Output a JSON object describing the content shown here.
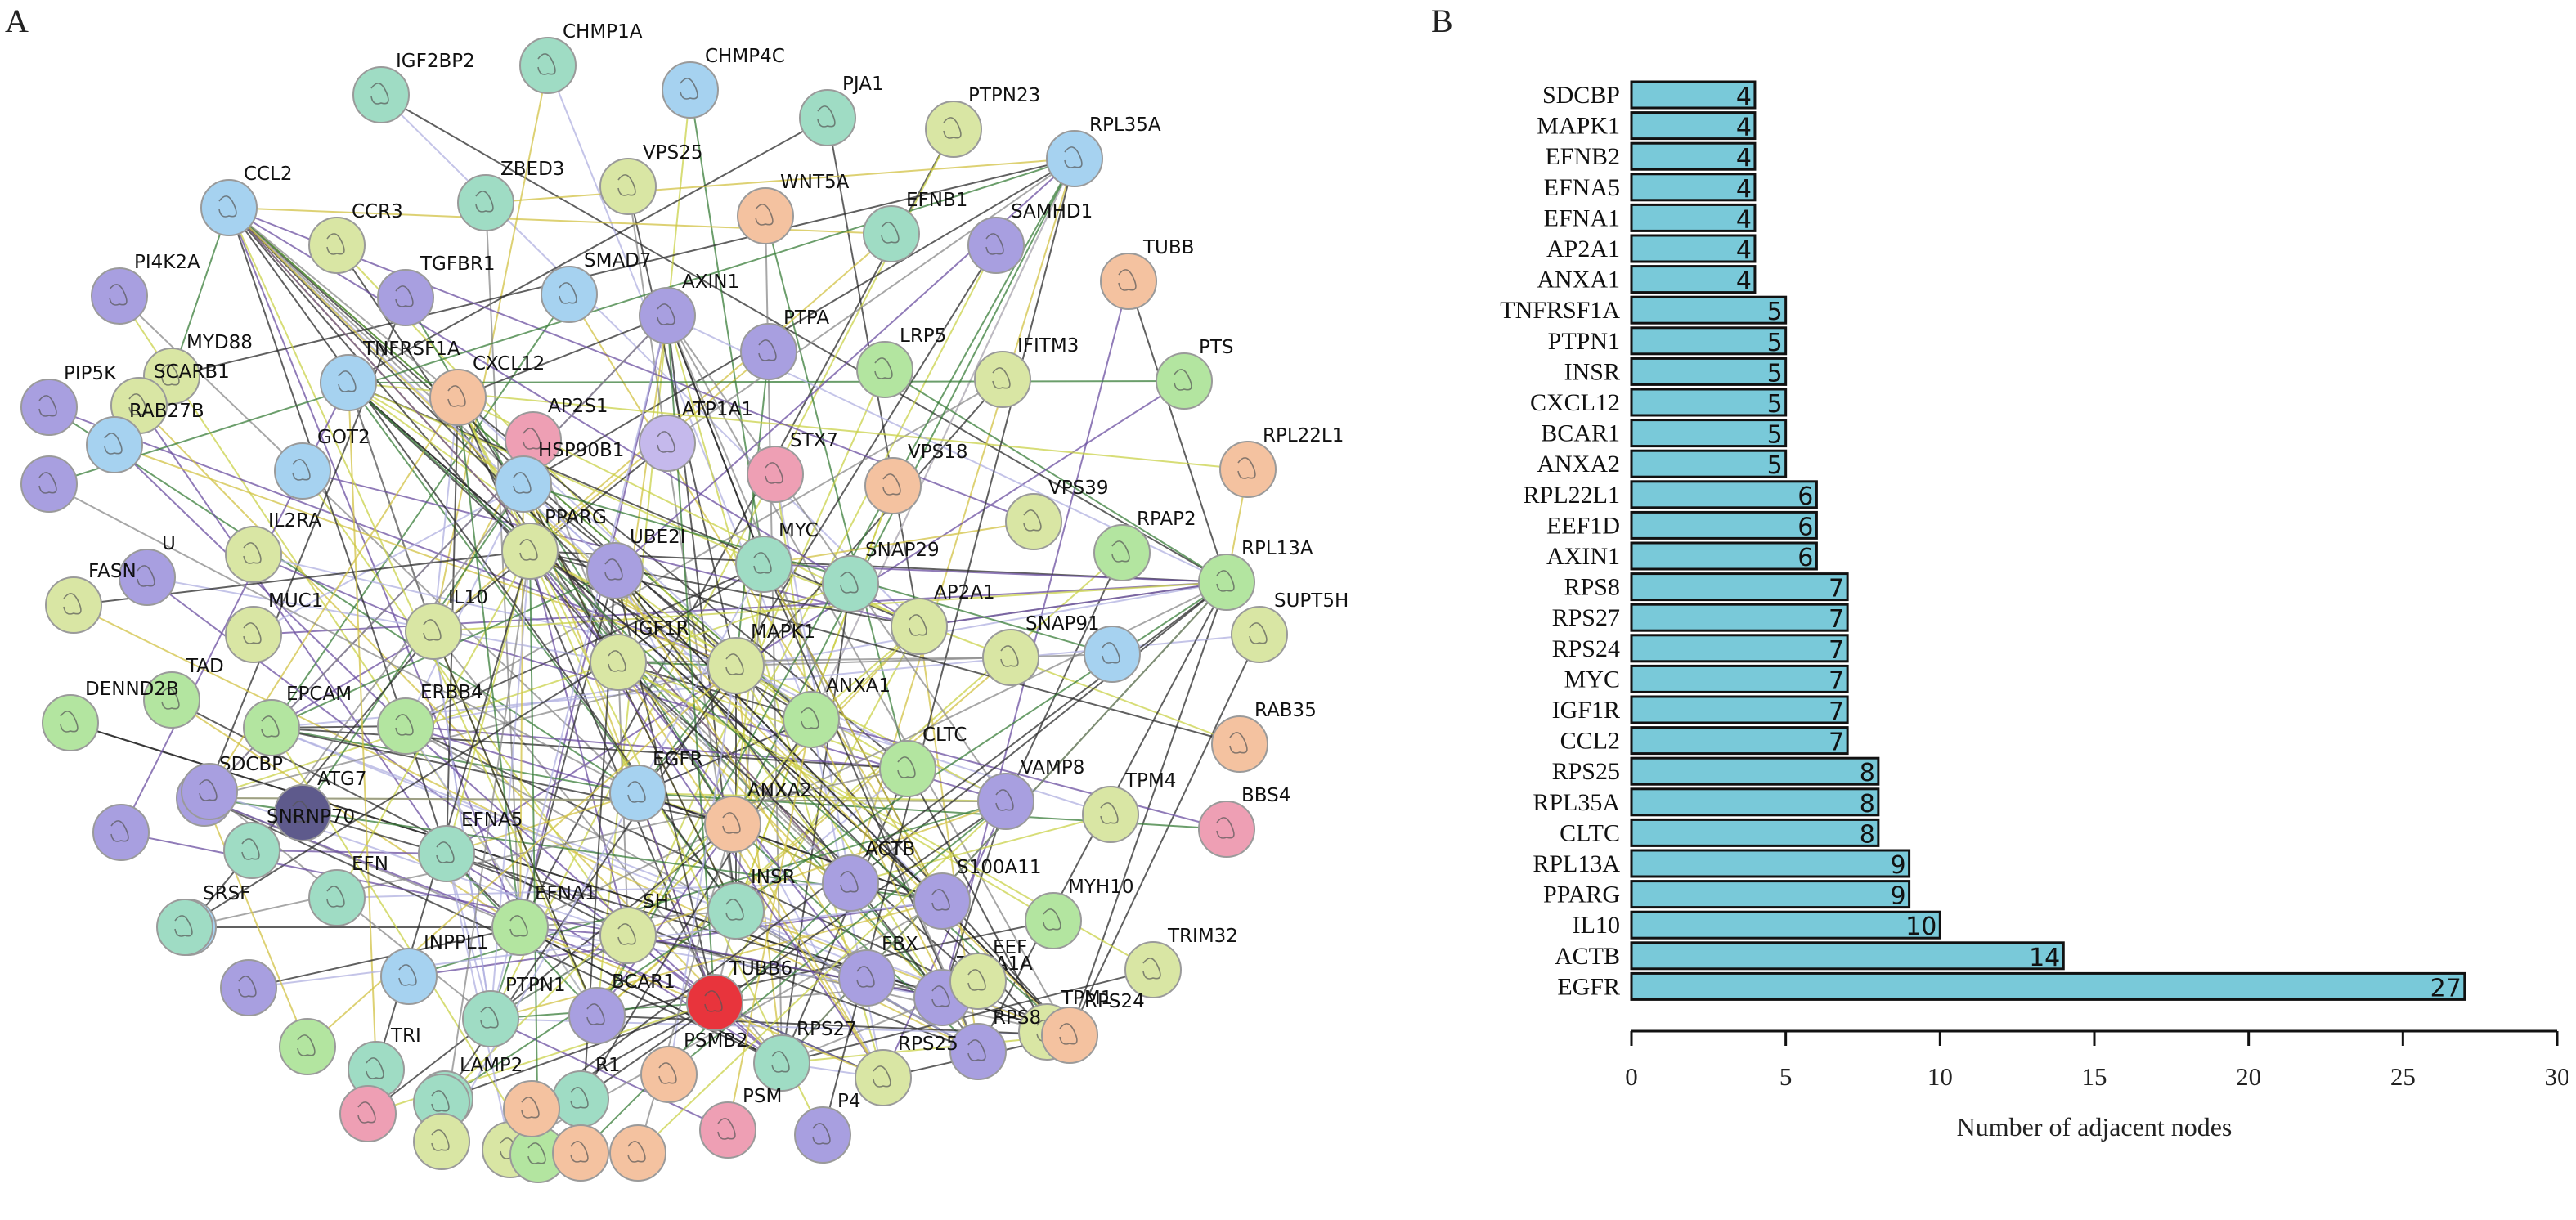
{
  "panels": {
    "a_letter": "A",
    "b_letter": "B"
  },
  "network": {
    "nodes": [
      {
        "id": "IGF2BP2",
        "label": "IGF2BP2",
        "color": "#9fdcc4"
      },
      {
        "id": "CHMP1A",
        "label": "CHMP1A",
        "color": "#9fdcc4"
      },
      {
        "id": "CHMP4C",
        "label": "CHMP4C",
        "color": "#a6d2f0"
      },
      {
        "id": "PJA1",
        "label": "PJA1",
        "color": "#9fdcc4"
      },
      {
        "id": "PTPN23",
        "label": "PTPN23",
        "color": "#d9e6a4"
      },
      {
        "id": "RPL35A",
        "label": "RPL35A",
        "color": "#a6d2f0"
      },
      {
        "id": "ZBED3",
        "label": "ZBED3",
        "color": "#9fdcc4"
      },
      {
        "id": "VPS25",
        "label": "VPS25",
        "color": "#d9e6a4"
      },
      {
        "id": "WNT5A",
        "label": "WNT5A",
        "color": "#f4c2a0"
      },
      {
        "id": "EFNB1",
        "label": "EFNB1",
        "color": "#9fdcc4"
      },
      {
        "id": "SAMHD1",
        "label": "SAMHD1",
        "color": "#a89fe0"
      },
      {
        "id": "TUBB",
        "label": "TUBB",
        "color": "#f4c2a0"
      },
      {
        "id": "CCL2",
        "label": "CCL2",
        "color": "#a6d2f0"
      },
      {
        "id": "CCR3",
        "label": "CCR3",
        "color": "#d9e6a4"
      },
      {
        "id": "TGFBR1",
        "label": "TGFBR1",
        "color": "#a89fe0"
      },
      {
        "id": "SMAD7",
        "label": "SMAD7",
        "color": "#a6d2f0"
      },
      {
        "id": "AXIN1",
        "label": "AXIN1",
        "color": "#a89fe0"
      },
      {
        "id": "PI4K2A",
        "label": "PI4K2A",
        "color": "#a89fe0"
      },
      {
        "id": "PTPA",
        "label": "PTPA",
        "color": "#a89fe0"
      },
      {
        "id": "LRP5",
        "label": "LRP5",
        "color": "#b3e5a0"
      },
      {
        "id": "IFITM3",
        "label": "IFITM3",
        "color": "#d9e6a4"
      },
      {
        "id": "PTS",
        "label": "PTS",
        "color": "#b3e5a0"
      },
      {
        "id": "MYD88",
        "label": "MYD88",
        "color": "#d9e6a4"
      },
      {
        "id": "TNFRSF1A",
        "label": "TNFRSF1A",
        "color": "#a6d2f0"
      },
      {
        "id": "CXCL12",
        "label": "CXCL12",
        "color": "#f4c2a0"
      },
      {
        "id": "PIP5K",
        "label": "PIP5K",
        "color": "#a89fe0"
      },
      {
        "id": "SCARB1",
        "label": "SCARB1",
        "color": "#d9e6a4"
      },
      {
        "id": "AP2S1",
        "label": "AP2S1",
        "color": "#ee9fb4"
      },
      {
        "id": "ATP1A1",
        "label": "ATP1A1",
        "color": "#c5b9ec"
      },
      {
        "id": "STX7",
        "label": "STX7",
        "color": "#ee9fb4"
      },
      {
        "id": "VPS18",
        "label": "VPS18",
        "color": "#f4c2a0"
      },
      {
        "id": "RPL22L1",
        "label": "RPL22L1",
        "color": "#f4c2a0"
      },
      {
        "id": "RAB27B",
        "label": "RAB27B",
        "color": "#a6d2f0"
      },
      {
        "id": "GOT2",
        "label": "GOT2",
        "color": "#a6d2f0"
      },
      {
        "id": "HSP90B1",
        "label": "HSP90B1",
        "color": "#a6d2f0"
      },
      {
        "id": "PPARG",
        "label": "PPARG",
        "color": "#d9e6a4"
      },
      {
        "id": "UBE2I",
        "label": "UBE2I",
        "color": "#a89fe0"
      },
      {
        "id": "VPS39",
        "label": "VPS39",
        "color": "#d9e6a4"
      },
      {
        "id": "RPAP2",
        "label": "RPAP2",
        "color": "#b3e5a0"
      },
      {
        "id": "RPL13A",
        "label": "RPL13A",
        "color": "#b3e5a0"
      },
      {
        "id": "IL2RA",
        "label": "IL2RA",
        "color": "#d9e6a4"
      },
      {
        "id": "MYC",
        "label": "MYC",
        "color": "#9fdcc4"
      },
      {
        "id": "SNAP29",
        "label": "SNAP29",
        "color": "#9fdcc4"
      },
      {
        "id": "AP2A1",
        "label": "AP2A1",
        "color": "#d9e6a4"
      },
      {
        "id": "SNAP91",
        "label": "SNAP91",
        "color": "#d9e6a4"
      },
      {
        "id": "SUPT5H",
        "label": "SUPT5H",
        "color": "#d9e6a4"
      },
      {
        "id": "U",
        "label": "U",
        "color": "#a89fe0"
      },
      {
        "id": "MUC1",
        "label": "MUC1",
        "color": "#d9e6a4"
      },
      {
        "id": "IL10",
        "label": "IL10",
        "color": "#d9e6a4"
      },
      {
        "id": "FASN",
        "label": "FASN",
        "color": "#d9e6a4"
      },
      {
        "id": "IGF1R",
        "label": "IGF1R",
        "color": "#d9e6a4"
      },
      {
        "id": "MAPK1",
        "label": "MAPK1",
        "color": "#d9e6a4"
      },
      {
        "id": "ANXA1",
        "label": "ANXA1",
        "color": "#b3e5a0"
      },
      {
        "id": "RAB35",
        "label": "RAB35",
        "color": "#f4c2a0"
      },
      {
        "id": "TAD",
        "label": "TAD",
        "color": "#b3e5a0"
      },
      {
        "id": "EPCAM",
        "label": "EPCAM",
        "color": "#b3e5a0"
      },
      {
        "id": "ERBB4",
        "label": "ERBB4",
        "color": "#b3e5a0"
      },
      {
        "id": "CLTC",
        "label": "CLTC",
        "color": "#b3e5a0"
      },
      {
        "id": "DENND2B",
        "label": "DENND2B",
        "color": "#b3e5a0"
      },
      {
        "id": "SDCBP",
        "label": "SDCBP",
        "color": "#a89fe0"
      },
      {
        "id": "EGFR",
        "label": "EGFR",
        "color": "#a6d2f0"
      },
      {
        "id": "VAMP8",
        "label": "VAMP8",
        "color": "#a89fe0"
      },
      {
        "id": "TPM4",
        "label": "TPM4",
        "color": "#d9e6a4"
      },
      {
        "id": "BBS4",
        "label": "BBS4",
        "color": "#ee9fb4"
      },
      {
        "id": "ATG7",
        "label": "ATG7",
        "color": "#5e5a8c"
      },
      {
        "id": "ANXA2",
        "label": "ANXA2",
        "color": "#f4c2a0"
      },
      {
        "id": "EFNA5",
        "label": "EFNA5",
        "color": "#9fdcc4"
      },
      {
        "id": "ACTB",
        "label": "ACTB",
        "color": "#a89fe0"
      },
      {
        "id": "S100A11",
        "label": "S100A11",
        "color": "#a89fe0"
      },
      {
        "id": "MYH10",
        "label": "MYH10",
        "color": "#b3e5a0"
      },
      {
        "id": "EFN",
        "label": "EFN",
        "color": "#9fdcc4"
      },
      {
        "id": "SNRNP70",
        "label": "SNRNP70",
        "color": "#9fdcc4"
      },
      {
        "id": "EFNA1",
        "label": "EFNA1",
        "color": "#b3e5a0"
      },
      {
        "id": "INSR",
        "label": "INSR",
        "color": "#9fdcc4"
      },
      {
        "id": "SH",
        "label": "SH",
        "color": "#d9e6a4"
      },
      {
        "id": "INPPL1",
        "label": "INPPL1",
        "color": "#a6d2f0"
      },
      {
        "id": "TUBA1A",
        "label": "TUBA1A",
        "color": "#a89fe0"
      },
      {
        "id": "TPM1",
        "label": "TPM1",
        "color": "#d9e6a4"
      },
      {
        "id": "TRIM32",
        "label": "TRIM32",
        "color": "#d9e6a4"
      },
      {
        "id": "SRSF",
        "label": "SRSF",
        "color": "#a6d2f0"
      },
      {
        "id": "PTPN1",
        "label": "PTPN1",
        "color": "#9fdcc4"
      },
      {
        "id": "BCAR1",
        "label": "BCAR1",
        "color": "#a89fe0"
      },
      {
        "id": "TUBB6",
        "label": "TUBB6",
        "color": "#e8343c"
      },
      {
        "id": "FBX",
        "label": "FBX",
        "color": "#a89fe0"
      },
      {
        "id": "EEF",
        "label": "EEF",
        "color": "#d9e6a4"
      },
      {
        "id": "TRI",
        "label": "TRI",
        "color": "#9fdcc4"
      },
      {
        "id": "LAMP2",
        "label": "LAMP2",
        "color": "#9fdcc4"
      },
      {
        "id": "PSMB2",
        "label": "PSMB2",
        "color": "#f4c2a0"
      },
      {
        "id": "RPS27",
        "label": "RPS27",
        "color": "#9fdcc4"
      },
      {
        "id": "RPS8",
        "label": "RPS8",
        "color": "#a89fe0"
      },
      {
        "id": "RPS24",
        "label": "RPS24",
        "color": "#f4c2a0"
      },
      {
        "id": "R1",
        "label": "R1",
        "color": "#9fdcc4"
      },
      {
        "id": "PSM",
        "label": "PSM",
        "color": "#ee9fb4"
      },
      {
        "id": "P4",
        "label": "P4",
        "color": "#a89fe0"
      },
      {
        "id": "RPS25",
        "label": "RPS25",
        "color": "#d9e6a4"
      },
      {
        "id": "N1",
        "label": "",
        "color": "#a89fe0"
      },
      {
        "id": "N2",
        "label": "",
        "color": "#a89fe0"
      },
      {
        "id": "N3",
        "label": "",
        "color": "#9fdcc4"
      },
      {
        "id": "N4",
        "label": "",
        "color": "#a89fe0"
      },
      {
        "id": "N5",
        "label": "",
        "color": "#a89fe0"
      },
      {
        "id": "N6",
        "label": "",
        "color": "#ee9fb4"
      },
      {
        "id": "N7",
        "label": "",
        "color": "#d9e6a4"
      },
      {
        "id": "N8",
        "label": "",
        "color": "#b3e5a0"
      },
      {
        "id": "N9",
        "label": "",
        "color": "#f4c2a0"
      },
      {
        "id": "N10",
        "label": "",
        "color": "#9fdcc4"
      },
      {
        "id": "N11",
        "label": "",
        "color": "#b3e5a0"
      },
      {
        "id": "N12",
        "label": "",
        "color": "#f4c2a0"
      },
      {
        "id": "N13",
        "label": "",
        "color": "#f4c2a0"
      },
      {
        "id": "N14",
        "label": "",
        "color": "#a6d2f0"
      },
      {
        "id": "N15",
        "label": "",
        "color": "#d9e6a4"
      }
    ]
  },
  "chart_data": {
    "type": "bar",
    "orientation": "horizontal",
    "categories": [
      "SDCBP",
      "MAPK1",
      "EFNB2",
      "EFNA5",
      "EFNA1",
      "AP2A1",
      "ANXA1",
      "TNFRSF1A",
      "PTPN1",
      "INSR",
      "CXCL12",
      "BCAR1",
      "ANXA2",
      "RPL22L1",
      "EEF1D",
      "AXIN1",
      "RPS8",
      "RPS27",
      "RPS24",
      "MYC",
      "IGF1R",
      "CCL2",
      "RPS25",
      "RPL35A",
      "CLTC",
      "RPL13A",
      "PPARG",
      "IL10",
      "ACTB",
      "EGFR"
    ],
    "values": [
      4,
      4,
      4,
      4,
      4,
      4,
      4,
      5,
      5,
      5,
      5,
      5,
      5,
      6,
      6,
      6,
      7,
      7,
      7,
      7,
      7,
      7,
      8,
      8,
      8,
      9,
      9,
      10,
      14,
      27
    ],
    "xlabel": "Number of adjacent nodes",
    "ylabel": "",
    "xlim": [
      0,
      30
    ],
    "xticks": [
      0,
      5,
      10,
      15,
      20,
      25,
      30
    ],
    "bar_color": "#79c9d9",
    "bar_edge_color": "#111111"
  }
}
